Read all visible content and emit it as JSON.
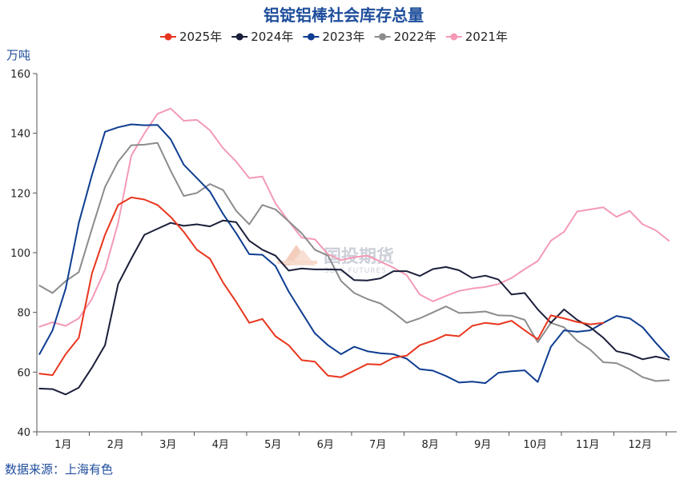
{
  "chart_data": {
    "type": "line",
    "title": "铝锭铝棒社会库存总量",
    "ylabel": "万吨",
    "xlabel": "",
    "ylim": [
      40,
      160
    ],
    "yticks": [
      40,
      60,
      80,
      100,
      120,
      140,
      160
    ],
    "xlim": [
      0,
      12.2
    ],
    "month_labels": [
      "1月",
      "2月",
      "3月",
      "4月",
      "5月",
      "6月",
      "7月",
      "8月",
      "9月",
      "10月",
      "11月",
      "12月"
    ],
    "grid": false,
    "legend_position": "top-center",
    "source": "数据来源：上海有色",
    "watermark": "国投期货",
    "watermark_sub": "SDIC FUTURES",
    "series": [
      {
        "name": "2025年",
        "color": "#e8361e",
        "x": [
          0.05,
          0.3,
          0.55,
          0.8,
          1.05,
          1.3,
          1.55,
          1.8,
          2.05,
          2.3,
          2.55,
          2.8,
          3.05,
          3.3,
          3.55,
          3.8,
          4.05,
          4.3,
          4.55,
          4.8,
          5.05,
          5.3,
          5.55,
          5.8,
          6.05,
          6.3,
          6.55,
          6.8,
          7.05,
          7.3,
          7.55,
          7.8,
          8.05,
          8.3,
          8.55,
          8.8,
          9.05,
          9.3,
          9.55,
          9.8,
          10.05,
          10.3,
          10.55,
          10.8
        ],
        "values": [
          59.5,
          59,
          66,
          71.5,
          93,
          106,
          116,
          118.5,
          117.8,
          116,
          112,
          107,
          101,
          98,
          90,
          83.5,
          76.5,
          77.8,
          72,
          69,
          64,
          63.5,
          58.8,
          58.3,
          60.5,
          62.7,
          62.5,
          64.8,
          65.5,
          69,
          70.5,
          72.5,
          72,
          75.5,
          76.5,
          76,
          77.2,
          74,
          71,
          79,
          78,
          76.8,
          76,
          76.5
        ]
      },
      {
        "name": "2024年",
        "color": "#1b1f3a",
        "x": [
          0.05,
          0.3,
          0.55,
          0.8,
          1.05,
          1.3,
          1.55,
          1.8,
          2.05,
          2.3,
          2.55,
          2.8,
          3.05,
          3.3,
          3.55,
          3.8,
          4.05,
          4.3,
          4.55,
          4.8,
          5.05,
          5.3,
          5.55,
          5.8,
          6.05,
          6.3,
          6.55,
          6.8,
          7.05,
          7.3,
          7.55,
          7.8,
          8.05,
          8.3,
          8.55,
          8.8,
          9.05,
          9.3,
          9.55,
          9.8,
          10.05,
          10.3,
          10.55,
          10.8,
          11.05,
          11.3,
          11.55,
          11.8,
          12.05
        ],
        "values": [
          54.5,
          54.3,
          52.5,
          54.8,
          61.5,
          69,
          89.5,
          98,
          106,
          108,
          110,
          109,
          109.5,
          108.8,
          110.8,
          110.2,
          104,
          101,
          99,
          94,
          94.7,
          94.4,
          94.4,
          94.3,
          90.8,
          90.7,
          91.4,
          93.8,
          93.8,
          92.2,
          94.5,
          95.2,
          94.1,
          91.5,
          92.3,
          91,
          86,
          86.5,
          81,
          76.5,
          81,
          77.5,
          75,
          71.5,
          67,
          66,
          64.3,
          65.2,
          64.2
        ]
      },
      {
        "name": "2023年",
        "color": "#0f3d91",
        "x": [
          0.05,
          0.3,
          0.55,
          0.8,
          1.05,
          1.3,
          1.55,
          1.8,
          2.05,
          2.3,
          2.55,
          2.8,
          3.05,
          3.3,
          3.55,
          3.8,
          4.05,
          4.3,
          4.55,
          4.8,
          5.05,
          5.3,
          5.55,
          5.8,
          6.05,
          6.3,
          6.55,
          6.8,
          7.05,
          7.3,
          7.55,
          7.8,
          8.05,
          8.3,
          8.55,
          8.8,
          9.05,
          9.3,
          9.55,
          9.8,
          10.05,
          10.3,
          10.55,
          10.8,
          11.05,
          11.3,
          11.55,
          11.8,
          12.05
        ],
        "values": [
          66,
          74,
          88,
          110,
          126,
          140.5,
          142,
          143,
          142.7,
          142.8,
          138,
          129.5,
          125,
          120.5,
          113,
          106.5,
          99.5,
          99.3,
          95.5,
          87,
          80,
          73,
          69,
          66,
          68.5,
          67,
          66.3,
          66,
          64.5,
          61,
          60.5,
          58.7,
          56.5,
          56.8,
          56.3,
          59.8,
          60.3,
          60.6,
          56.7,
          68.5,
          74,
          73.5,
          74,
          76.5,
          78.8,
          78,
          75,
          69.8,
          65
        ]
      },
      {
        "name": "2022年",
        "color": "#8c8c8c",
        "x": [
          0.05,
          0.3,
          0.55,
          0.8,
          1.05,
          1.3,
          1.55,
          1.8,
          2.05,
          2.3,
          2.55,
          2.8,
          3.05,
          3.3,
          3.55,
          3.8,
          4.05,
          4.3,
          4.55,
          4.8,
          5.05,
          5.3,
          5.55,
          5.8,
          6.05,
          6.3,
          6.55,
          6.8,
          7.05,
          7.3,
          7.55,
          7.8,
          8.05,
          8.3,
          8.55,
          8.8,
          9.05,
          9.3,
          9.55,
          9.8,
          10.05,
          10.3,
          10.55,
          10.8,
          11.05,
          11.3,
          11.55,
          11.8,
          12.05
        ],
        "values": [
          89,
          86.5,
          90.5,
          93.5,
          108,
          122,
          130.5,
          136,
          136.2,
          136.8,
          127.5,
          119,
          120,
          123,
          121,
          114,
          109.5,
          116,
          114.5,
          110.5,
          106.5,
          101,
          99,
          90.5,
          86.5,
          84.5,
          83,
          80,
          76.5,
          78,
          80,
          82,
          79.8,
          80,
          80.3,
          79,
          78.9,
          77.5,
          70,
          76.5,
          75,
          70.5,
          67.5,
          63.3,
          63,
          61,
          58.3,
          57,
          57.3
        ]
      },
      {
        "name": "2021年",
        "color": "#f49ab5",
        "x": [
          0.05,
          0.3,
          0.55,
          0.8,
          1.05,
          1.3,
          1.55,
          1.8,
          2.05,
          2.3,
          2.55,
          2.8,
          3.05,
          3.3,
          3.55,
          3.8,
          4.05,
          4.3,
          4.55,
          4.8,
          5.05,
          5.3,
          5.55,
          5.8,
          6.05,
          6.3,
          6.55,
          6.8,
          7.05,
          7.3,
          7.55,
          7.8,
          8.05,
          8.3,
          8.55,
          8.8,
          9.05,
          9.3,
          9.55,
          9.8,
          10.05,
          10.3,
          10.55,
          10.8,
          11.05,
          11.3,
          11.55,
          11.8,
          12.05
        ],
        "values": [
          75.2,
          76.7,
          75.5,
          78,
          84.5,
          94.3,
          110,
          132.5,
          140,
          146.5,
          148.3,
          144.2,
          144.5,
          141,
          135,
          130.5,
          125,
          125.5,
          116.5,
          110.5,
          105,
          104.5,
          99.5,
          97.5,
          98.5,
          99,
          97,
          95,
          92.5,
          86,
          83.7,
          85.5,
          87.2,
          88,
          88.5,
          89.5,
          91.5,
          94.5,
          97.2,
          104,
          107,
          113.8,
          114.5,
          115.2,
          112,
          114,
          109.5,
          107.5,
          104
        ]
      }
    ]
  }
}
